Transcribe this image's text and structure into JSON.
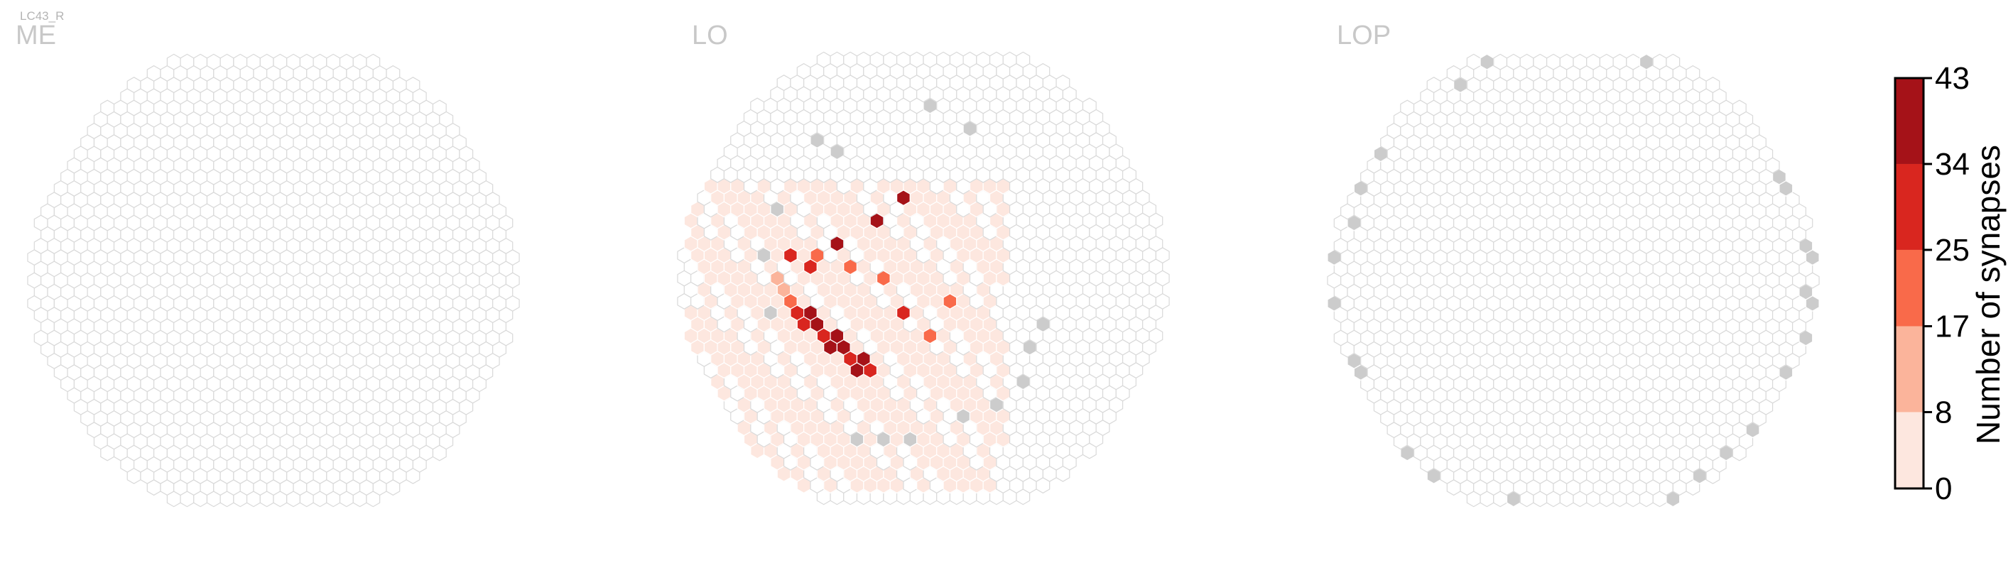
{
  "figure": {
    "cell_type_label": "LC43_R",
    "colors": {
      "empty_hex_stroke": "#d9d9d9",
      "empty_hex_fill": "#ffffff",
      "unused_column_fill": "#cccccc",
      "title_color": "#c8c8c8"
    }
  },
  "chart_data": {
    "type": "heatmap",
    "subtype": "hexagonal column map (3 neuropils)",
    "panels": [
      {
        "name": "ME",
        "title": "ME",
        "synapse_columns": [],
        "gray_columns": []
      },
      {
        "name": "LO",
        "title": "LO",
        "note": "synapses concentrated in lower-left (ventral-anterior) region; max ~43 near lower-left",
        "synapse_columns": [
          {
            "hx": -11,
            "hy": 0,
            "count": 9
          },
          {
            "hx": -11,
            "hy": -1,
            "count": 12
          },
          {
            "hx": -10,
            "hy": -2,
            "count": 20
          },
          {
            "hx": -10,
            "hy": -3,
            "count": 30
          },
          {
            "hx": -9,
            "hy": -3,
            "count": 42
          },
          {
            "hx": -9,
            "hy": -4,
            "count": 33
          },
          {
            "hx": -8,
            "hy": -4,
            "count": 36
          },
          {
            "hx": -8,
            "hy": -5,
            "count": 26
          },
          {
            "hx": -7,
            "hy": -5,
            "count": 41
          },
          {
            "hx": -7,
            "hy": -6,
            "count": 43
          },
          {
            "hx": -6,
            "hy": -6,
            "count": 40
          },
          {
            "hx": -6,
            "hy": -7,
            "count": 29
          },
          {
            "hx": -5,
            "hy": -7,
            "count": 35
          },
          {
            "hx": -5,
            "hy": -8,
            "count": 43
          },
          {
            "hx": -4,
            "hy": -8,
            "count": 30
          },
          {
            "hx": -9,
            "hy": 1,
            "count": 28
          },
          {
            "hx": -10,
            "hy": 2,
            "count": 34
          },
          {
            "hx": -8,
            "hy": 2,
            "count": 25
          },
          {
            "hx": -7,
            "hy": 3,
            "count": 37
          },
          {
            "hx": -6,
            "hy": 1,
            "count": 22
          },
          {
            "hx": -4,
            "hy": 5,
            "count": 36
          },
          {
            "hx": -2,
            "hy": 7,
            "count": 38
          },
          {
            "hx": -3,
            "hy": 0,
            "count": 20
          },
          {
            "hx": -2,
            "hy": -3,
            "count": 29
          },
          {
            "hx": 0,
            "hy": -5,
            "count": 21
          },
          {
            "hx": 2,
            "hy": -2,
            "count": 18
          }
        ],
        "gray_columns": [
          {
            "hx": 0,
            "hy": 15
          },
          {
            "hx": 3,
            "hy": 13
          },
          {
            "hx": -8,
            "hy": 12
          },
          {
            "hx": -7,
            "hy": 11
          },
          {
            "hx": -11,
            "hy": 6
          },
          {
            "hx": -12,
            "hy": 2
          },
          {
            "hx": -12,
            "hy": -3
          },
          {
            "hx": 9,
            "hy": -4
          },
          {
            "hx": 8,
            "hy": -6
          },
          {
            "hx": 7,
            "hy": -9
          },
          {
            "hx": 5,
            "hy": -11
          },
          {
            "hx": 3,
            "hy": -12
          },
          {
            "hx": -1,
            "hy": -14
          },
          {
            "hx": -3,
            "hy": -14
          },
          {
            "hx": -5,
            "hy": -14
          }
        ]
      },
      {
        "name": "LOP",
        "title": "LOP",
        "synapse_columns": [],
        "gray_columns": "perimeter ring (selected edge columns)"
      }
    ],
    "colorbar": {
      "label": "Number of synapses",
      "ticks": [
        0,
        8,
        17,
        25,
        34,
        43
      ],
      "range": [
        0,
        43
      ],
      "colors": [
        "#fde7df",
        "#fbb49b",
        "#f96a4a",
        "#d9261f",
        "#a51218"
      ]
    },
    "grid": false,
    "legend": "right (colorbar)"
  }
}
